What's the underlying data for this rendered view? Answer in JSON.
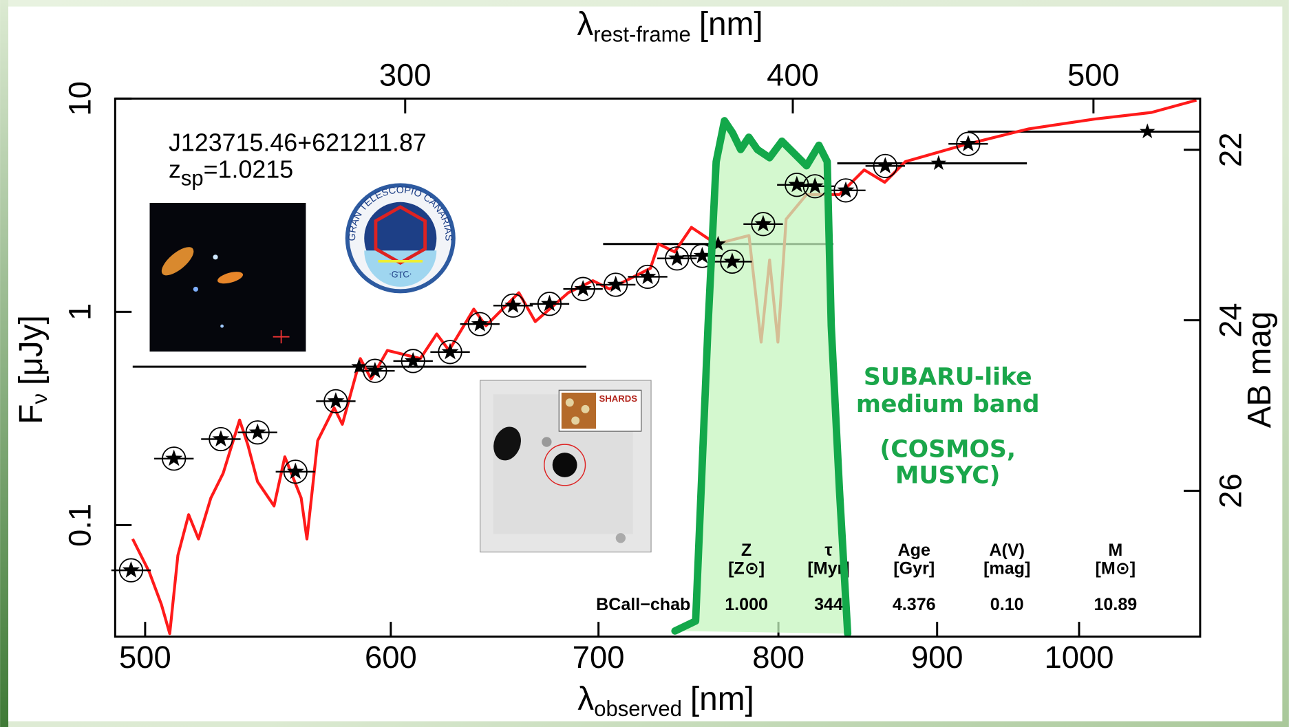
{
  "chart_data": {
    "type": "scatter",
    "x_scale": "log",
    "y_scale": "log",
    "x_label": {
      "symbol": "λ",
      "subscript": "observed",
      "unit": "[nm]"
    },
    "x2_label": {
      "symbol": "λ",
      "subscript": "rest-frame",
      "unit": "[nm]"
    },
    "y_label": {
      "symbol": "F",
      "subscript": "ν",
      "unit": "[μJy]"
    },
    "y2_label": "AB mag",
    "xlim": [
      489,
      1094
    ],
    "xticks": [
      500,
      600,
      700,
      800,
      900,
      1000
    ],
    "x2lim": [
      241.9,
      541.2
    ],
    "x2ticks": [
      300,
      400,
      500
    ],
    "ylim": [
      0.03,
      10
    ],
    "yticks": [
      0.1,
      1,
      10
    ],
    "y2lim": [
      27.71,
      21.4
    ],
    "y2ticks": [
      22,
      24,
      26
    ],
    "object": "J123715.46+621211.87",
    "redshift": {
      "symbol": "z",
      "subscript": "sp",
      "text": "=1.0215"
    },
    "spectrum": {
      "color": "#ff1a1a",
      "x": [
        495.4,
        501.5,
        506.1,
        509.2,
        512.3,
        516.4,
        520.2,
        525.0,
        529.8,
        536.3,
        539.6,
        543.5,
        550.2,
        554.6,
        561.4,
        563.8,
        568.3,
        575.3,
        578.8,
        586.6,
        591.3,
        598.5,
        613.3,
        620.8,
        626.5,
        638.1,
        643.9,
        659.8,
        667.9,
        684.5,
        697.1,
        705.7,
        727.5,
        731.9,
        740.7,
        750.0,
        763.9,
        782.7,
        789.8,
        794.8,
        799.7,
        804.6,
        816.9,
        837.1,
        852.6,
        865.7,
        879.0,
        917.3,
        963.2,
        1011.3,
        1055.2,
        1091.0
      ],
      "values": [
        0.0861,
        0.0604,
        0.0424,
        0.031,
        0.0721,
        0.112,
        0.0861,
        0.134,
        0.175,
        0.311,
        0.238,
        0.16,
        0.123,
        0.209,
        0.134,
        0.0861,
        0.249,
        0.355,
        0.297,
        0.604,
        0.484,
        0.659,
        0.604,
        0.788,
        0.659,
        1.03,
        0.86,
        1.23,
        0.9,
        1.23,
        1.4,
        1.28,
        1.6,
        2.08,
        1.91,
        2.49,
        2.08,
        2.28,
        0.721,
        1.75,
        0.721,
        2.72,
        3.55,
        3.55,
        4.63,
        4.05,
        5.06,
        6.04,
        7.21,
        8.01,
        8.61,
        9.83
      ]
    },
    "medium_band": {
      "color": "#000000",
      "x": [
        494.8,
        510.8,
        528.9,
        543.5,
        559.0,
        576.0,
        593.0,
        610.0,
        627.0,
        641.0,
        657.0,
        675.0,
        692.0,
        709.0,
        726.0,
        742.0,
        756.0,
        773.0,
        791.0,
        811.0,
        822.0,
        841.0,
        866.0,
        921.0
      ],
      "values": [
        0.0614,
        0.205,
        0.253,
        0.272,
        0.178,
        0.381,
        0.529,
        0.588,
        0.648,
        0.876,
        1.07,
        1.09,
        1.28,
        1.34,
        1.46,
        1.78,
        1.83,
        1.72,
        2.58,
        3.94,
        3.88,
        3.71,
        4.83,
        6.13
      ]
    },
    "broad_band": {
      "color": "#000000",
      "x": [
        586,
        765,
        901,
        1052
      ],
      "values": [
        0.553,
        2.08,
        4.97,
        7.0
      ],
      "x_min": [
        495.4,
        702.4,
        835.7,
        920.6
      ],
      "x_max": [
        693.7,
        833.2,
        962.0,
        1094
      ]
    },
    "filter": {
      "color": "#13a84a",
      "fill": "#c6f5bf",
      "x": [
        740.9,
        752.3,
        759.3,
        763.9,
        768.6,
        773.3,
        777.9,
        782.6,
        787.6,
        794.8,
        802.1,
        809.5,
        816.9,
        824.4,
        829.5,
        832.0,
        837.1,
        842.2
      ],
      "values": [
        0.0319,
        0.0355,
        0.86,
        5.06,
        7.87,
        6.89,
        5.77,
        6.59,
        5.77,
        5.28,
        6.31,
        5.52,
        4.84,
        6.04,
        5.06,
        0.86,
        0.146,
        0.031
      ]
    },
    "filter_label": [
      "SUBARU-like",
      "medium band",
      "(COSMOS,",
      "MUSYC)"
    ],
    "table": {
      "headers": [
        {
          "name": "Z",
          "unit": "[Z⊙]"
        },
        {
          "name": "τ",
          "unit": "[Myr]"
        },
        {
          "name": "Age",
          "unit": "[Gyr]"
        },
        {
          "name": "A(V)",
          "unit": "[mag]"
        },
        {
          "name": "M",
          "unit": "[M⊙]"
        }
      ],
      "row_label": "BCall−chab",
      "values": [
        "1.000",
        "344",
        "4.376",
        "0.10",
        "10.89"
      ]
    },
    "logos": {
      "gtc": {
        "ring": "GRAN TELESCOPIO CANARIAS",
        "short": "·GTC·"
      },
      "shards": "SHARDS"
    }
  }
}
